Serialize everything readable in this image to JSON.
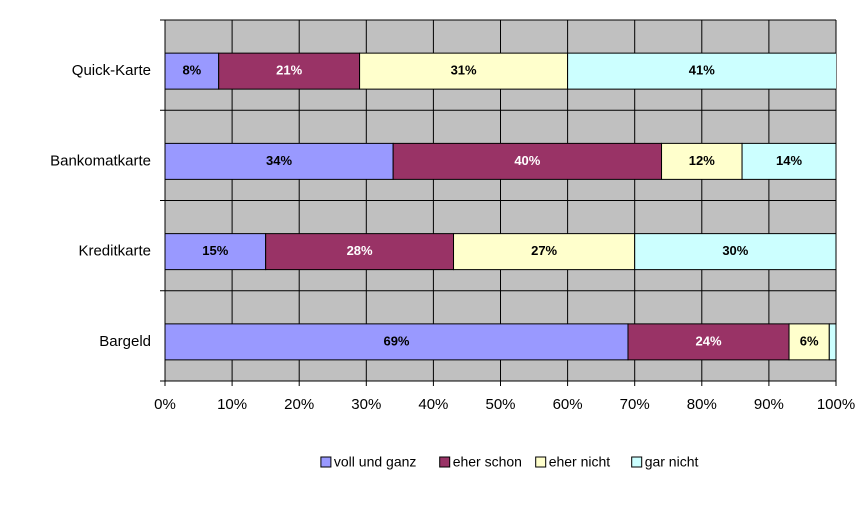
{
  "chart_data": {
    "type": "stacked-bar-horizontal",
    "categories": [
      "Quick-Karte",
      "Bankomatkarte",
      "Kreditkarte",
      "Bargeld"
    ],
    "series": [
      {
        "name": "voll und ganz",
        "color": "#9999ff",
        "values": [
          8,
          34,
          15,
          69
        ],
        "value_labels": [
          "8%",
          "34%",
          "15%",
          "69%"
        ]
      },
      {
        "name": "eher schon",
        "color": "#993366",
        "values": [
          21,
          40,
          28,
          24
        ],
        "value_labels": [
          "21%",
          "40%",
          "28%",
          "24%"
        ]
      },
      {
        "name": "eher nicht",
        "color": "#ffffcc",
        "values": [
          31,
          12,
          27,
          6
        ],
        "value_labels": [
          "31%",
          "12%",
          "27%",
          "6%"
        ]
      },
      {
        "name": "gar nicht",
        "color": "#ccffff",
        "values": [
          41,
          14,
          30,
          1
        ],
        "value_labels": [
          "41%",
          "14%",
          "30%",
          null
        ]
      }
    ],
    "xlim": [
      0,
      100
    ],
    "xticks": [
      {
        "value": 0,
        "label": "0%"
      },
      {
        "value": 10,
        "label": "10%"
      },
      {
        "value": 20,
        "label": "20%"
      },
      {
        "value": 30,
        "label": "30%"
      },
      {
        "value": 40,
        "label": "40%"
      },
      {
        "value": 50,
        "label": "50%"
      },
      {
        "value": 60,
        "label": "60%"
      },
      {
        "value": 70,
        "label": "70%"
      },
      {
        "value": 80,
        "label": "80%"
      },
      {
        "value": 90,
        "label": "90%"
      },
      {
        "value": 100,
        "label": "100%"
      }
    ],
    "grid": true,
    "legend": "bottom"
  }
}
